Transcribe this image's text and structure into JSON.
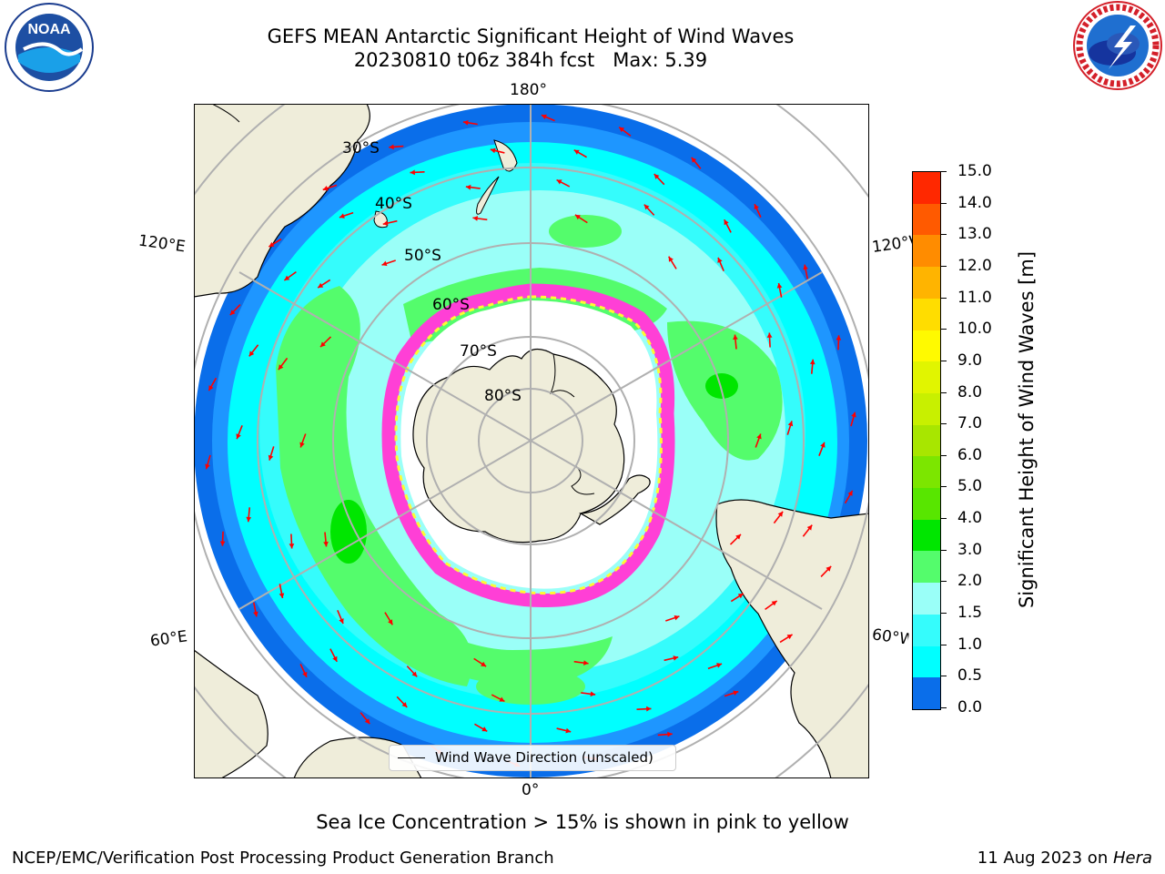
{
  "header": {
    "title_line1": "GEFS MEAN Antarctic Significant Height of Wind Waves",
    "title_line2": "20230810 t06z 384h fcst   Max: 5.39"
  },
  "map": {
    "longitude_labels": {
      "top": "180°",
      "bottom": "0°",
      "upper_left": "120°E",
      "upper_right": "120°W",
      "lower_left": "60°E",
      "lower_right": "60°W"
    },
    "latitude_labels": [
      "30°S",
      "40°S",
      "50°S",
      "60°S",
      "70°S",
      "80°S"
    ],
    "legend": "Wind Wave Direction (unscaled)",
    "colors": {
      "land": "#efedda",
      "ocean_edge": "#0a6eea",
      "low": "#1e96ff",
      "mid": "#00ffff",
      "high": "#9afff8",
      "green": "#54fc6c",
      "ice_pink": "#ff3fd6",
      "ice_yellow": "#fffa32",
      "arrow": "#ff0000"
    }
  },
  "colorbar": {
    "label": "Significant Height of Wind Waves [m]",
    "ticks": [
      "0.0",
      "0.5",
      "1.0",
      "1.5",
      "2.0",
      "3.0",
      "4.0",
      "5.0",
      "6.0",
      "7.0",
      "8.0",
      "9.0",
      "10.0",
      "11.0",
      "12.0",
      "13.0",
      "14.0",
      "15.0"
    ],
    "colors": [
      "#0000ff",
      "#0a6eea",
      "#00ffff",
      "#35fcfc",
      "#9afff8",
      "#54fc6c",
      "#00e600",
      "#58e600",
      "#7ce600",
      "#a8e600",
      "#c8f000",
      "#e1f500",
      "#fffa00",
      "#ffdd00",
      "#ffb400",
      "#ff8c00",
      "#ff5a00",
      "#ff2800",
      "#ff0000"
    ]
  },
  "caption": "Sea Ice Concentration > 15% is shown in pink to yellow",
  "footer": {
    "left": "NCEP/EMC/Verification Post Processing Product Generation Branch",
    "right_prefix": "11 Aug 2023 on ",
    "right_host": "Hera"
  }
}
